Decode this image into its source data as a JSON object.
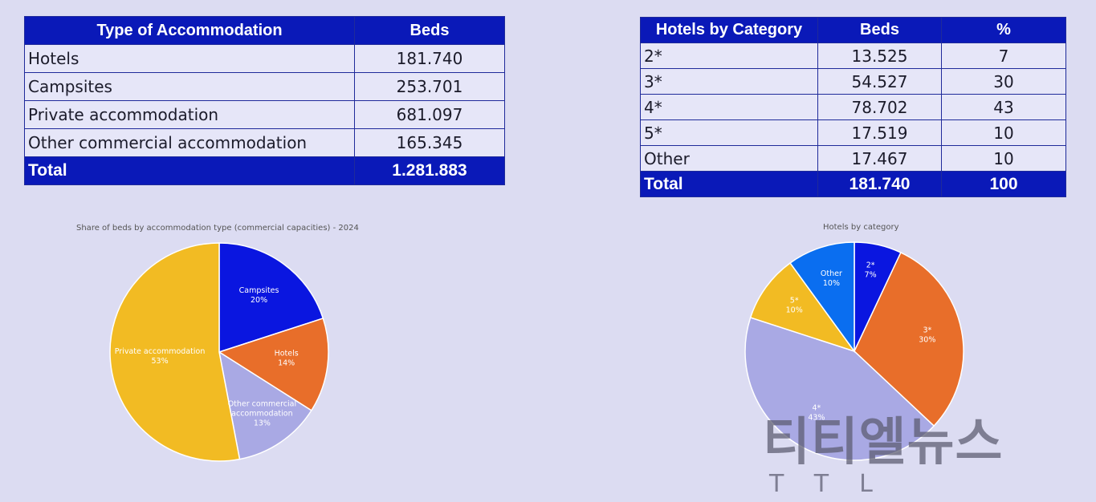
{
  "table_accommodation": {
    "headers": [
      "Type of Accommodation",
      "Beds"
    ],
    "rows": [
      [
        "Hotels",
        "181.740"
      ],
      [
        "Campsites",
        "253.701"
      ],
      [
        "Private accommodation",
        "681.097"
      ],
      [
        "Other commercial accommodation",
        "165.345"
      ]
    ],
    "total": [
      "Total",
      "1.281.883"
    ]
  },
  "table_hotels": {
    "headers": [
      "Hotels by Category",
      "Beds",
      "%"
    ],
    "rows": [
      [
        "2*",
        "13.525",
        "7"
      ],
      [
        "3*",
        "54.527",
        "30"
      ],
      [
        "4*",
        "78.702",
        "43"
      ],
      [
        "5*",
        "17.519",
        "10"
      ],
      [
        "Other",
        "17.467",
        "10"
      ]
    ],
    "total": [
      "Total",
      "181.740",
      "100"
    ]
  },
  "chart_data": [
    {
      "type": "pie",
      "title": "Share of beds by accommodation type (commercial capacities) - 2024",
      "categories": [
        "Campsites",
        "Hotels",
        "Other commercial accommodation",
        "Private accommodation"
      ],
      "label_lines": [
        [
          "Campsites",
          "20%"
        ],
        [
          "Hotels",
          "14%"
        ],
        [
          "Other commercial",
          "accommodation",
          "13%"
        ],
        [
          "Private accommodation",
          "53%"
        ]
      ],
      "values": [
        20,
        14,
        13,
        53
      ],
      "colors": [
        "#0a16e0",
        "#e86e2a",
        "#a9a9e4",
        "#f2bb23"
      ],
      "label_colors": [
        "#ffffff",
        "#ffffff",
        "#ffffff",
        "#ffffff"
      ]
    },
    {
      "type": "pie",
      "title": "Hotels by category",
      "categories": [
        "2*",
        "3*",
        "4*",
        "5*",
        "Other"
      ],
      "label_lines": [
        [
          "2*",
          "7%"
        ],
        [
          "3*",
          "30%"
        ],
        [
          "4*",
          "43%"
        ],
        [
          "5*",
          "10%"
        ],
        [
          "Other",
          "10%"
        ]
      ],
      "values": [
        7,
        30,
        43,
        10,
        10
      ],
      "colors": [
        "#0a16e0",
        "#e86e2a",
        "#a9a9e4",
        "#f2bb23",
        "#0a6ef0"
      ],
      "label_colors": [
        "#ffffff",
        "#ffffff",
        "#ffffff",
        "#ffffff",
        "#ffffff"
      ]
    }
  ],
  "watermark": {
    "main": "티티엘뉴스",
    "sub": "TTL"
  }
}
